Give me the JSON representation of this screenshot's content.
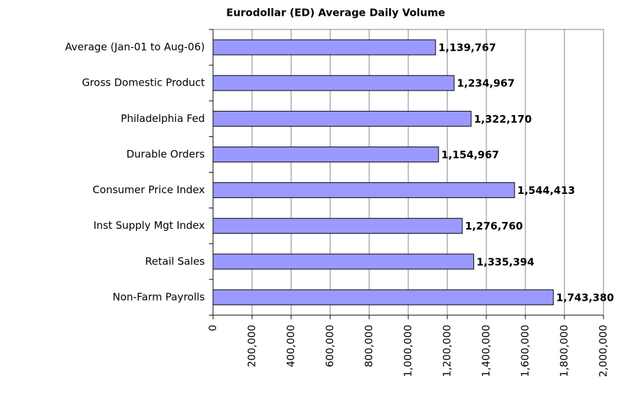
{
  "chart_data": {
    "type": "bar",
    "orientation": "horizontal",
    "title": "Eurodollar (ED) Average Daily Volume",
    "categories": [
      "Average (Jan-01 to Aug-06)",
      "Gross Domestic Product",
      "Philadelphia Fed",
      "Durable Orders",
      "Consumer Price Index",
      "Inst Supply Mgt Index",
      "Retail Sales",
      "Non-Farm Payrolls"
    ],
    "values": [
      1139767,
      1234967,
      1322170,
      1154967,
      1544413,
      1276760,
      1335394,
      1743380
    ],
    "value_labels": [
      "1,139,767",
      "1,234,967",
      "1,322,170",
      "1,154,967",
      "1,544,413",
      "1,276,760",
      "1,335,394",
      "1,743,380"
    ],
    "color": "#9999ff",
    "xlim": [
      0,
      2000000
    ],
    "xticks": [
      0,
      {
        "value": 200000,
        "label": "200,000"
      },
      {
        "value": 400000,
        "label": "400,000"
      },
      {
        "value": 600000,
        "label": "600,000"
      },
      {
        "value": 800000,
        "label": "800,000"
      },
      {
        "value": 1000000,
        "label": "1,000,000"
      },
      {
        "value": 1200000,
        "label": "1,200,000"
      },
      {
        "value": 1400000,
        "label": "1,400,000"
      },
      {
        "value": 1600000,
        "label": "1,600,000"
      },
      {
        "value": 1800000,
        "label": "1,800,000"
      },
      {
        "value": 2000000,
        "label": "2,000,000"
      }
    ],
    "grid": true
  }
}
